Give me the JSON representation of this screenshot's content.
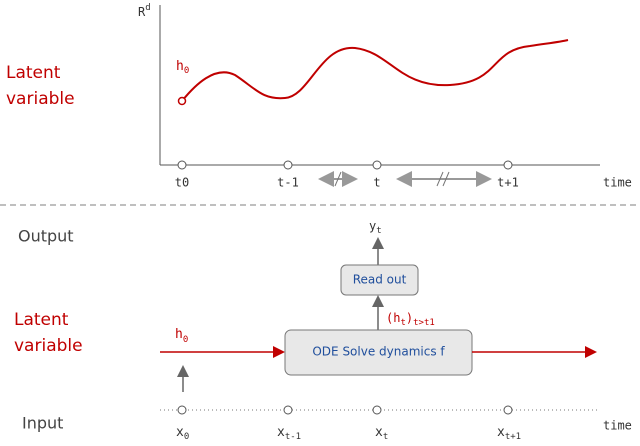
{
  "top_panel": {
    "axis_label": "R",
    "axis_label_sup": "d",
    "curve_label": "h",
    "curve_label_sub": "0",
    "side_label": [
      "Latent",
      "variable"
    ],
    "ticks": [
      "t0",
      "t-1",
      "t",
      "t+1"
    ],
    "time_label": "time"
  },
  "bottom_panel": {
    "output_label": "Output",
    "input_label": "Input",
    "side_label": [
      "Latent",
      "variable"
    ],
    "output_var": {
      "base": "y",
      "sub": "t"
    },
    "readout_box": "Read out",
    "solver_box": "ODE Solve dynamics f",
    "state_label": {
      "open": "(h",
      "inner_sub": "t",
      "close": ")",
      "outer_sub": "t>t1"
    },
    "initial_label": {
      "base": "h",
      "sub": "0"
    },
    "inputs": [
      {
        "base": "x",
        "sub": "0"
      },
      {
        "base": "x",
        "sub": "t-1"
      },
      {
        "base": "x",
        "sub": "t"
      },
      {
        "base": "x",
        "sub": "t+1"
      }
    ],
    "time_label": "time"
  }
}
